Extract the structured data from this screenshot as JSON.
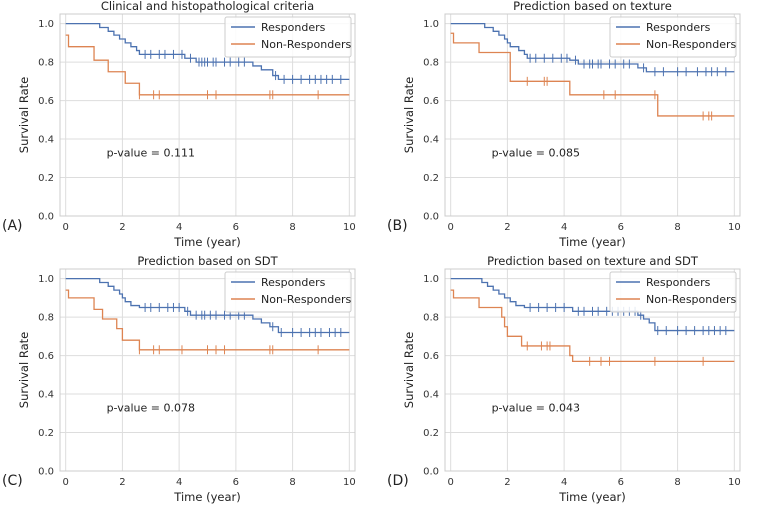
{
  "chart_data": [
    {
      "type": "line",
      "panel_label": "(A)",
      "title": "Clinical and histopathological criteria",
      "xlabel": "Time (year)",
      "ylabel": "Survival Rate",
      "xlim": [
        -0.2,
        10.2
      ],
      "ylim": [
        0,
        1.05
      ],
      "xticks": [
        0,
        2,
        4,
        6,
        8,
        10
      ],
      "yticks": [
        0.0,
        0.2,
        0.4,
        0.6,
        0.8,
        1.0
      ],
      "annotation": "p-value = 0.111",
      "legend": [
        "Responders",
        "Non-Responders"
      ],
      "legend_position": "top-right",
      "series": [
        {
          "name": "Responders",
          "color": "#4c72b0",
          "steps": [
            [
              0,
              1.0
            ],
            [
              1.2,
              0.98
            ],
            [
              1.5,
              0.96
            ],
            [
              1.7,
              0.94
            ],
            [
              1.9,
              0.92
            ],
            [
              2.1,
              0.9
            ],
            [
              2.3,
              0.88
            ],
            [
              2.5,
              0.86
            ],
            [
              2.6,
              0.84
            ],
            [
              4.2,
              0.82
            ],
            [
              4.6,
              0.8
            ],
            [
              6.6,
              0.78
            ],
            [
              6.9,
              0.76
            ],
            [
              7.3,
              0.73
            ],
            [
              7.5,
              0.71
            ],
            [
              10,
              0.71
            ]
          ],
          "censored": [
            2.8,
            3.0,
            3.3,
            3.5,
            3.8,
            4.1,
            4.4,
            4.7,
            4.8,
            4.9,
            5.0,
            5.2,
            5.3,
            5.6,
            5.8,
            6.1,
            6.3,
            7.4,
            7.7,
            8.0,
            8.3,
            8.6,
            8.8,
            9.0,
            9.2,
            9.4,
            9.7
          ]
        },
        {
          "name": "Non-Responders",
          "color": "#dd8452",
          "steps": [
            [
              0,
              0.94
            ],
            [
              0.1,
              0.88
            ],
            [
              1.0,
              0.81
            ],
            [
              1.5,
              0.75
            ],
            [
              2.1,
              0.69
            ],
            [
              2.6,
              0.63
            ],
            [
              10,
              0.63
            ]
          ],
          "censored": [
            2.6,
            3.1,
            3.3,
            5.0,
            5.3,
            7.2,
            7.3,
            8.9
          ]
        }
      ]
    },
    {
      "type": "line",
      "panel_label": "(B)",
      "title": "Prediction based on texture",
      "xlabel": "Time (year)",
      "ylabel": "Survival Rate",
      "xlim": [
        -0.2,
        10.2
      ],
      "ylim": [
        0,
        1.05
      ],
      "xticks": [
        0,
        2,
        4,
        6,
        8,
        10
      ],
      "yticks": [
        0.0,
        0.2,
        0.4,
        0.6,
        0.8,
        1.0
      ],
      "annotation": "p-value = 0.085",
      "legend": [
        "Responders",
        "Non-Responders"
      ],
      "legend_position": "top-right",
      "series": [
        {
          "name": "Responders",
          "color": "#4c72b0",
          "steps": [
            [
              0,
              1.0
            ],
            [
              1.2,
              0.98
            ],
            [
              1.5,
              0.96
            ],
            [
              1.7,
              0.94
            ],
            [
              1.9,
              0.92
            ],
            [
              2.0,
              0.9
            ],
            [
              2.1,
              0.88
            ],
            [
              2.4,
              0.86
            ],
            [
              2.6,
              0.84
            ],
            [
              2.7,
              0.82
            ],
            [
              4.2,
              0.81
            ],
            [
              4.5,
              0.79
            ],
            [
              6.6,
              0.77
            ],
            [
              6.9,
              0.75
            ],
            [
              10,
              0.75
            ]
          ],
          "censored": [
            2.8,
            3.0,
            3.3,
            3.6,
            3.9,
            4.1,
            4.4,
            4.7,
            4.9,
            5.0,
            5.2,
            5.3,
            5.6,
            5.8,
            6.1,
            6.3,
            6.8,
            7.2,
            7.5,
            8.0,
            8.3,
            8.7,
            9.0,
            9.2,
            9.4,
            9.7
          ]
        },
        {
          "name": "Non-Responders",
          "color": "#dd8452",
          "steps": [
            [
              0,
              0.95
            ],
            [
              0.1,
              0.9
            ],
            [
              1.0,
              0.85
            ],
            [
              2.1,
              0.7
            ],
            [
              4.2,
              0.63
            ],
            [
              7.3,
              0.52
            ],
            [
              10,
              0.52
            ]
          ],
          "censored": [
            2.7,
            3.3,
            3.4,
            5.4,
            5.8,
            7.2,
            8.9,
            9.1,
            9.2
          ]
        }
      ]
    },
    {
      "type": "line",
      "panel_label": "(C)",
      "title": "Prediction based on SDT",
      "xlabel": "Time (year)",
      "ylabel": "Survival Rate",
      "xlim": [
        -0.2,
        10.2
      ],
      "ylim": [
        0,
        1.05
      ],
      "xticks": [
        0,
        2,
        4,
        6,
        8,
        10
      ],
      "yticks": [
        0.0,
        0.2,
        0.4,
        0.6,
        0.8,
        1.0
      ],
      "annotation": "p-value = 0.078",
      "legend": [
        "Responders",
        "Non-Responders"
      ],
      "legend_position": "top-right",
      "series": [
        {
          "name": "Responders",
          "color": "#4c72b0",
          "steps": [
            [
              0,
              1.0
            ],
            [
              1.2,
              0.98
            ],
            [
              1.5,
              0.96
            ],
            [
              1.7,
              0.94
            ],
            [
              1.9,
              0.92
            ],
            [
              2.0,
              0.9
            ],
            [
              2.1,
              0.88
            ],
            [
              2.3,
              0.86
            ],
            [
              2.6,
              0.85
            ],
            [
              4.2,
              0.83
            ],
            [
              4.4,
              0.81
            ],
            [
              6.6,
              0.79
            ],
            [
              6.9,
              0.77
            ],
            [
              7.2,
              0.75
            ],
            [
              7.5,
              0.72
            ],
            [
              10,
              0.72
            ]
          ],
          "censored": [
            2.8,
            3.0,
            3.3,
            3.6,
            3.8,
            4.0,
            4.3,
            4.6,
            4.8,
            4.9,
            5.1,
            5.3,
            5.6,
            5.8,
            6.1,
            6.3,
            7.3,
            7.6,
            8.0,
            8.3,
            8.6,
            8.8,
            9.0,
            9.3,
            9.5,
            9.7
          ]
        },
        {
          "name": "Non-Responders",
          "color": "#dd8452",
          "steps": [
            [
              0,
              0.94
            ],
            [
              0.1,
              0.9
            ],
            [
              1.0,
              0.84
            ],
            [
              1.3,
              0.79
            ],
            [
              1.8,
              0.74
            ],
            [
              2.0,
              0.68
            ],
            [
              2.6,
              0.63
            ],
            [
              10,
              0.63
            ]
          ],
          "censored": [
            2.6,
            3.1,
            3.3,
            4.1,
            5.0,
            5.3,
            5.6,
            7.2,
            7.3,
            8.9
          ]
        }
      ]
    },
    {
      "type": "line",
      "panel_label": "(D)",
      "title": "Prediction based on texture and SDT",
      "xlabel": "Time (year)",
      "ylabel": "Survival Rate",
      "xlim": [
        -0.2,
        10.2
      ],
      "ylim": [
        0,
        1.05
      ],
      "xticks": [
        0,
        2,
        4,
        6,
        8,
        10
      ],
      "yticks": [
        0.0,
        0.2,
        0.4,
        0.6,
        0.8,
        1.0
      ],
      "annotation": "p-value = 0.043",
      "legend": [
        "Responders",
        "Non-Responders"
      ],
      "legend_position": "top-right",
      "series": [
        {
          "name": "Responders",
          "color": "#4c72b0",
          "steps": [
            [
              0,
              1.0
            ],
            [
              1.1,
              0.98
            ],
            [
              1.3,
              0.96
            ],
            [
              1.5,
              0.94
            ],
            [
              1.7,
              0.92
            ],
            [
              1.9,
              0.9
            ],
            [
              2.1,
              0.88
            ],
            [
              2.3,
              0.86
            ],
            [
              2.6,
              0.85
            ],
            [
              4.3,
              0.83
            ],
            [
              6.6,
              0.81
            ],
            [
              6.8,
              0.79
            ],
            [
              7.0,
              0.77
            ],
            [
              7.2,
              0.73
            ],
            [
              10,
              0.73
            ]
          ],
          "censored": [
            2.8,
            3.1,
            3.4,
            3.7,
            4.0,
            4.5,
            4.7,
            5.0,
            5.2,
            5.5,
            5.7,
            5.9,
            6.1,
            6.3,
            6.5,
            6.7,
            7.3,
            7.6,
            8.0,
            8.3,
            8.6,
            8.9,
            9.1,
            9.3,
            9.5,
            9.7
          ]
        },
        {
          "name": "Non-Responders",
          "color": "#dd8452",
          "steps": [
            [
              0,
              0.94
            ],
            [
              0.1,
              0.9
            ],
            [
              1.0,
              0.85
            ],
            [
              1.8,
              0.8
            ],
            [
              1.9,
              0.75
            ],
            [
              2.0,
              0.7
            ],
            [
              2.5,
              0.65
            ],
            [
              4.2,
              0.6
            ],
            [
              4.3,
              0.57
            ],
            [
              10,
              0.57
            ]
          ],
          "censored": [
            2.7,
            3.2,
            3.4,
            3.5,
            4.9,
            5.3,
            5.6,
            7.2,
            8.9
          ]
        }
      ]
    }
  ]
}
